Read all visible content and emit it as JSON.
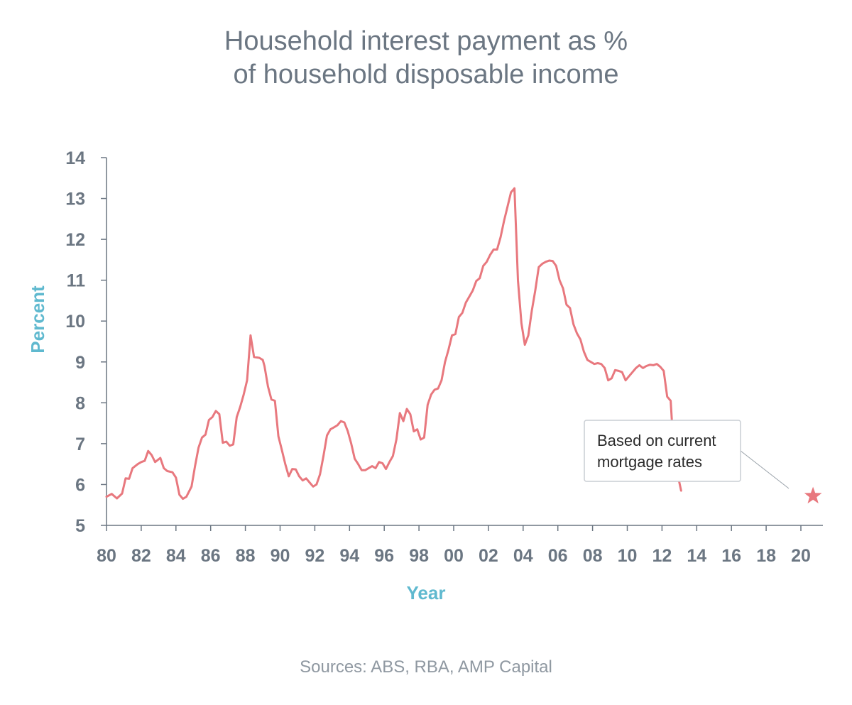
{
  "chart_data": {
    "type": "line",
    "title_lines": [
      "Household interest payment as %",
      "of household disposable income"
    ],
    "xlabel": "Year",
    "ylabel": "Percent",
    "xlim": [
      1980,
      2021.3
    ],
    "ylim": [
      5,
      14
    ],
    "y_ticks": [
      5,
      6,
      7,
      8,
      9,
      10,
      11,
      12,
      13,
      14
    ],
    "x_ticks": [
      {
        "year": 1980,
        "label": "80"
      },
      {
        "year": 1982,
        "label": "82"
      },
      {
        "year": 1984,
        "label": "84"
      },
      {
        "year": 1986,
        "label": "86"
      },
      {
        "year": 1988,
        "label": "88"
      },
      {
        "year": 1990,
        "label": "90"
      },
      {
        "year": 1992,
        "label": "92"
      },
      {
        "year": 1994,
        "label": "94"
      },
      {
        "year": 1996,
        "label": "96"
      },
      {
        "year": 1998,
        "label": "98"
      },
      {
        "year": 2000,
        "label": "00"
      },
      {
        "year": 2002,
        "label": "02"
      },
      {
        "year": 2004,
        "label": "04"
      },
      {
        "year": 2006,
        "label": "06"
      },
      {
        "year": 2008,
        "label": "08"
      },
      {
        "year": 2010,
        "label": "10"
      },
      {
        "year": 2012,
        "label": "12"
      },
      {
        "year": 2014,
        "label": "14"
      },
      {
        "year": 2016,
        "label": "16"
      },
      {
        "year": 2018,
        "label": "18"
      },
      {
        "year": 2020,
        "label": "20"
      }
    ],
    "grid": false,
    "series": [
      {
        "color": "#e8787e",
        "points": [
          [
            1980.0,
            5.7
          ],
          [
            1980.3,
            5.77
          ],
          [
            1980.6,
            5.66
          ],
          [
            1980.9,
            5.78
          ],
          [
            1981.1,
            6.15
          ],
          [
            1981.3,
            6.14
          ],
          [
            1981.5,
            6.4
          ],
          [
            1981.8,
            6.5
          ],
          [
            1982.0,
            6.55
          ],
          [
            1982.2,
            6.58
          ],
          [
            1982.4,
            6.82
          ],
          [
            1982.6,
            6.72
          ],
          [
            1982.8,
            6.55
          ],
          [
            1983.1,
            6.65
          ],
          [
            1983.3,
            6.4
          ],
          [
            1983.5,
            6.33
          ],
          [
            1983.8,
            6.3
          ],
          [
            1984.0,
            6.17
          ],
          [
            1984.2,
            5.75
          ],
          [
            1984.4,
            5.65
          ],
          [
            1984.6,
            5.7
          ],
          [
            1984.9,
            5.95
          ],
          [
            1985.1,
            6.45
          ],
          [
            1985.3,
            6.9
          ],
          [
            1985.5,
            7.15
          ],
          [
            1985.7,
            7.22
          ],
          [
            1985.9,
            7.58
          ],
          [
            1986.1,
            7.65
          ],
          [
            1986.3,
            7.8
          ],
          [
            1986.5,
            7.72
          ],
          [
            1986.7,
            7.02
          ],
          [
            1986.9,
            7.05
          ],
          [
            1987.1,
            6.95
          ],
          [
            1987.3,
            6.98
          ],
          [
            1987.5,
            7.65
          ],
          [
            1987.7,
            7.9
          ],
          [
            1987.9,
            8.2
          ],
          [
            1988.1,
            8.55
          ],
          [
            1988.3,
            9.65
          ],
          [
            1988.5,
            9.12
          ],
          [
            1988.8,
            9.1
          ],
          [
            1989.0,
            9.05
          ],
          [
            1989.1,
            8.9
          ],
          [
            1989.3,
            8.4
          ],
          [
            1989.5,
            8.08
          ],
          [
            1989.7,
            8.05
          ],
          [
            1989.9,
            7.18
          ],
          [
            1990.1,
            6.85
          ],
          [
            1990.3,
            6.5
          ],
          [
            1990.5,
            6.2
          ],
          [
            1990.7,
            6.38
          ],
          [
            1990.9,
            6.37
          ],
          [
            1991.1,
            6.2
          ],
          [
            1991.3,
            6.1
          ],
          [
            1991.5,
            6.15
          ],
          [
            1991.7,
            6.05
          ],
          [
            1991.9,
            5.95
          ],
          [
            1992.1,
            6.0
          ],
          [
            1992.3,
            6.25
          ],
          [
            1992.5,
            6.7
          ],
          [
            1992.7,
            7.2
          ],
          [
            1992.9,
            7.35
          ],
          [
            1993.1,
            7.4
          ],
          [
            1993.3,
            7.45
          ],
          [
            1993.5,
            7.55
          ],
          [
            1993.7,
            7.52
          ],
          [
            1993.9,
            7.3
          ],
          [
            1994.1,
            7.0
          ],
          [
            1994.3,
            6.63
          ],
          [
            1994.5,
            6.5
          ],
          [
            1994.7,
            6.35
          ],
          [
            1994.9,
            6.35
          ],
          [
            1995.1,
            6.4
          ],
          [
            1995.3,
            6.45
          ],
          [
            1995.5,
            6.4
          ],
          [
            1995.7,
            6.55
          ],
          [
            1995.9,
            6.52
          ],
          [
            1996.1,
            6.38
          ],
          [
            1996.3,
            6.55
          ],
          [
            1996.5,
            6.7
          ],
          [
            1996.7,
            7.1
          ],
          [
            1996.9,
            7.75
          ],
          [
            1997.1,
            7.55
          ],
          [
            1997.3,
            7.85
          ],
          [
            1997.5,
            7.72
          ],
          [
            1997.7,
            7.3
          ],
          [
            1997.9,
            7.35
          ],
          [
            1998.1,
            7.1
          ],
          [
            1998.3,
            7.15
          ],
          [
            1998.5,
            7.95
          ],
          [
            1998.7,
            8.2
          ],
          [
            1998.9,
            8.32
          ],
          [
            1999.1,
            8.35
          ],
          [
            1999.3,
            8.55
          ],
          [
            1999.5,
            9.0
          ],
          [
            1999.7,
            9.3
          ],
          [
            1999.9,
            9.65
          ],
          [
            2000.1,
            9.68
          ],
          [
            2000.3,
            10.1
          ],
          [
            2000.5,
            10.2
          ],
          [
            2000.7,
            10.45
          ],
          [
            2000.9,
            10.6
          ],
          [
            2001.1,
            10.75
          ],
          [
            2001.3,
            10.98
          ],
          [
            2001.5,
            11.05
          ],
          [
            2001.7,
            11.35
          ],
          [
            2001.9,
            11.45
          ],
          [
            2002.1,
            11.62
          ],
          [
            2002.3,
            11.75
          ],
          [
            2002.5,
            11.75
          ],
          [
            2002.7,
            12.05
          ],
          [
            2002.9,
            12.45
          ],
          [
            2003.1,
            12.8
          ],
          [
            2003.3,
            13.15
          ],
          [
            2003.5,
            13.25
          ],
          [
            2003.7,
            11.0
          ],
          [
            2003.9,
            9.95
          ],
          [
            2004.1,
            9.42
          ],
          [
            2004.3,
            9.65
          ],
          [
            2004.5,
            10.25
          ],
          [
            2004.7,
            10.75
          ],
          [
            2004.9,
            11.32
          ],
          [
            2005.1,
            11.4
          ],
          [
            2005.3,
            11.45
          ],
          [
            2005.5,
            11.48
          ],
          [
            2005.7,
            11.47
          ],
          [
            2005.9,
            11.35
          ],
          [
            2006.1,
            11.0
          ],
          [
            2006.3,
            10.8
          ],
          [
            2006.5,
            10.4
          ],
          [
            2006.7,
            10.32
          ],
          [
            2006.9,
            9.92
          ],
          [
            2007.1,
            9.7
          ],
          [
            2007.3,
            9.55
          ],
          [
            2007.5,
            9.25
          ],
          [
            2007.7,
            9.05
          ],
          [
            2007.9,
            9.0
          ],
          [
            2008.1,
            8.95
          ],
          [
            2008.3,
            8.97
          ],
          [
            2008.5,
            8.95
          ],
          [
            2008.7,
            8.85
          ],
          [
            2008.9,
            8.55
          ],
          [
            2009.1,
            8.6
          ],
          [
            2009.3,
            8.8
          ],
          [
            2009.5,
            8.78
          ],
          [
            2009.7,
            8.75
          ],
          [
            2009.9,
            8.55
          ],
          [
            2010.1,
            8.65
          ],
          [
            2010.3,
            8.75
          ],
          [
            2010.5,
            8.85
          ],
          [
            2010.7,
            8.92
          ],
          [
            2010.9,
            8.85
          ],
          [
            2011.1,
            8.9
          ],
          [
            2011.3,
            8.93
          ],
          [
            2011.5,
            8.92
          ],
          [
            2011.7,
            8.95
          ],
          [
            2011.9,
            8.88
          ],
          [
            2012.1,
            8.78
          ],
          [
            2012.3,
            8.15
          ],
          [
            2012.5,
            8.05
          ],
          [
            2012.7,
            6.65
          ],
          [
            2012.9,
            6.25
          ],
          [
            2013.1,
            5.85
          ]
        ]
      }
    ],
    "marker": {
      "symbol": "star",
      "x": 2020.7,
      "y": 5.72,
      "color": "#e8787e"
    },
    "annotation": {
      "lines": [
        "Based on current",
        "mortgage rates"
      ],
      "points_to": {
        "x": 2020.7,
        "y": 5.72
      }
    },
    "source": "Sources: ABS, RBA, AMP Capital"
  },
  "colors": {
    "line": "#e8787e",
    "axis": "#6b7682",
    "axis_title": "#5fb9cf",
    "text": "#6b7682"
  }
}
